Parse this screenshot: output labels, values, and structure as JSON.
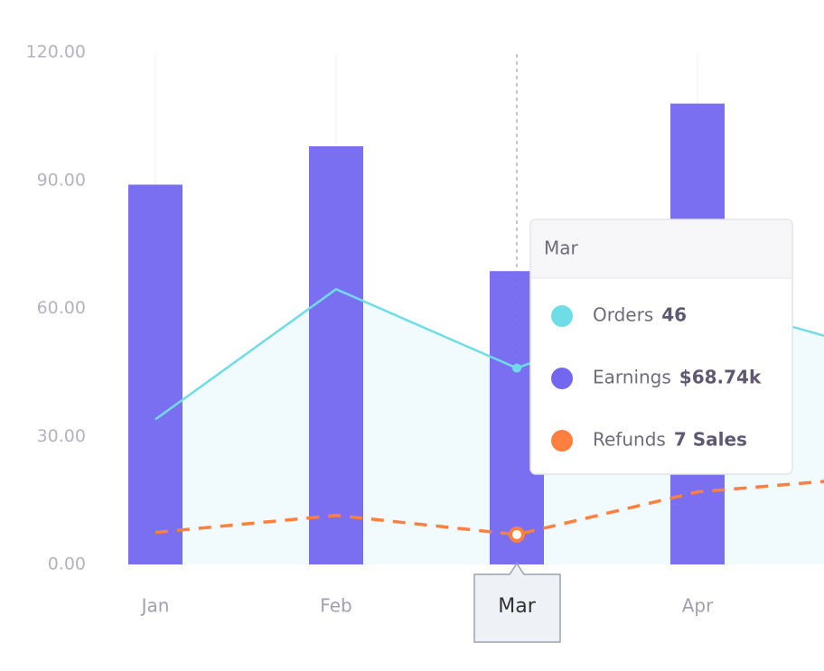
{
  "chart_data": {
    "type": "bar",
    "categories": [
      "Jan",
      "Feb",
      "Mar",
      "Apr",
      null
    ],
    "series": [
      {
        "name": "Orders",
        "color": "#6fdde6",
        "values": [
          34,
          64.5,
          46,
          62,
          50
        ]
      },
      {
        "name": "Earnings",
        "color": "#7367f0",
        "values": [
          89,
          98,
          68.74,
          108,
          null
        ],
        "value_labels": [
          null,
          null,
          "$68.74k",
          null,
          null
        ]
      },
      {
        "name": "Refunds",
        "color": "#ff7f3f",
        "values": [
          7.5,
          11.5,
          7,
          17,
          20.5
        ],
        "value_labels": [
          null,
          null,
          "7 Sales",
          null,
          null
        ]
      }
    ],
    "ylim": [
      0,
      120
    ],
    "yticks": [
      {
        "value": 0,
        "label": "0.00"
      },
      {
        "value": 30,
        "label": "30.00"
      },
      {
        "value": 60,
        "label": "60.00"
      },
      {
        "value": 90,
        "label": "90.00"
      },
      {
        "value": 120,
        "label": "120.00"
      }
    ],
    "grid": true
  }
}
